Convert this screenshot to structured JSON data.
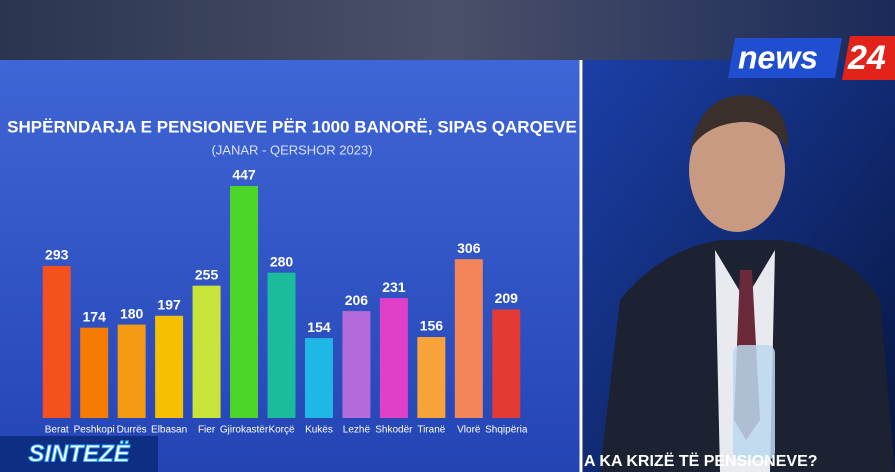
{
  "chart_data": {
    "type": "bar",
    "title": "SHPËRNDARJA E PENSIONEVE PËR 1000 BANORË, SIPAS QARQEVE",
    "subtitle": "(JANAR - QERSHOR 2023)",
    "categories": [
      "Berat",
      "Peshkopi",
      "Durrës",
      "Elbasan",
      "Fier",
      "Gjirokastër",
      "Korçë",
      "Kukës",
      "Lezhë",
      "Shkodër",
      "Tiranë",
      "Vlorë",
      "Shqipëria"
    ],
    "values": [
      293,
      174,
      180,
      197,
      255,
      447,
      280,
      154,
      206,
      231,
      156,
      306,
      209
    ],
    "colors": [
      "#f4511e",
      "#f57c00",
      "#f39a12",
      "#f6c000",
      "#c8e33a",
      "#4cd62a",
      "#1abc9c",
      "#1fb7e6",
      "#b36bdc",
      "#e040c8",
      "#f7a33a",
      "#f4845a",
      "#e53935"
    ]
  },
  "broadcast": {
    "logo_word": "news",
    "logo_number": "24",
    "show": "SINTEZË",
    "ticker": "A KA KRIZË TË PENSIONEVE?"
  }
}
